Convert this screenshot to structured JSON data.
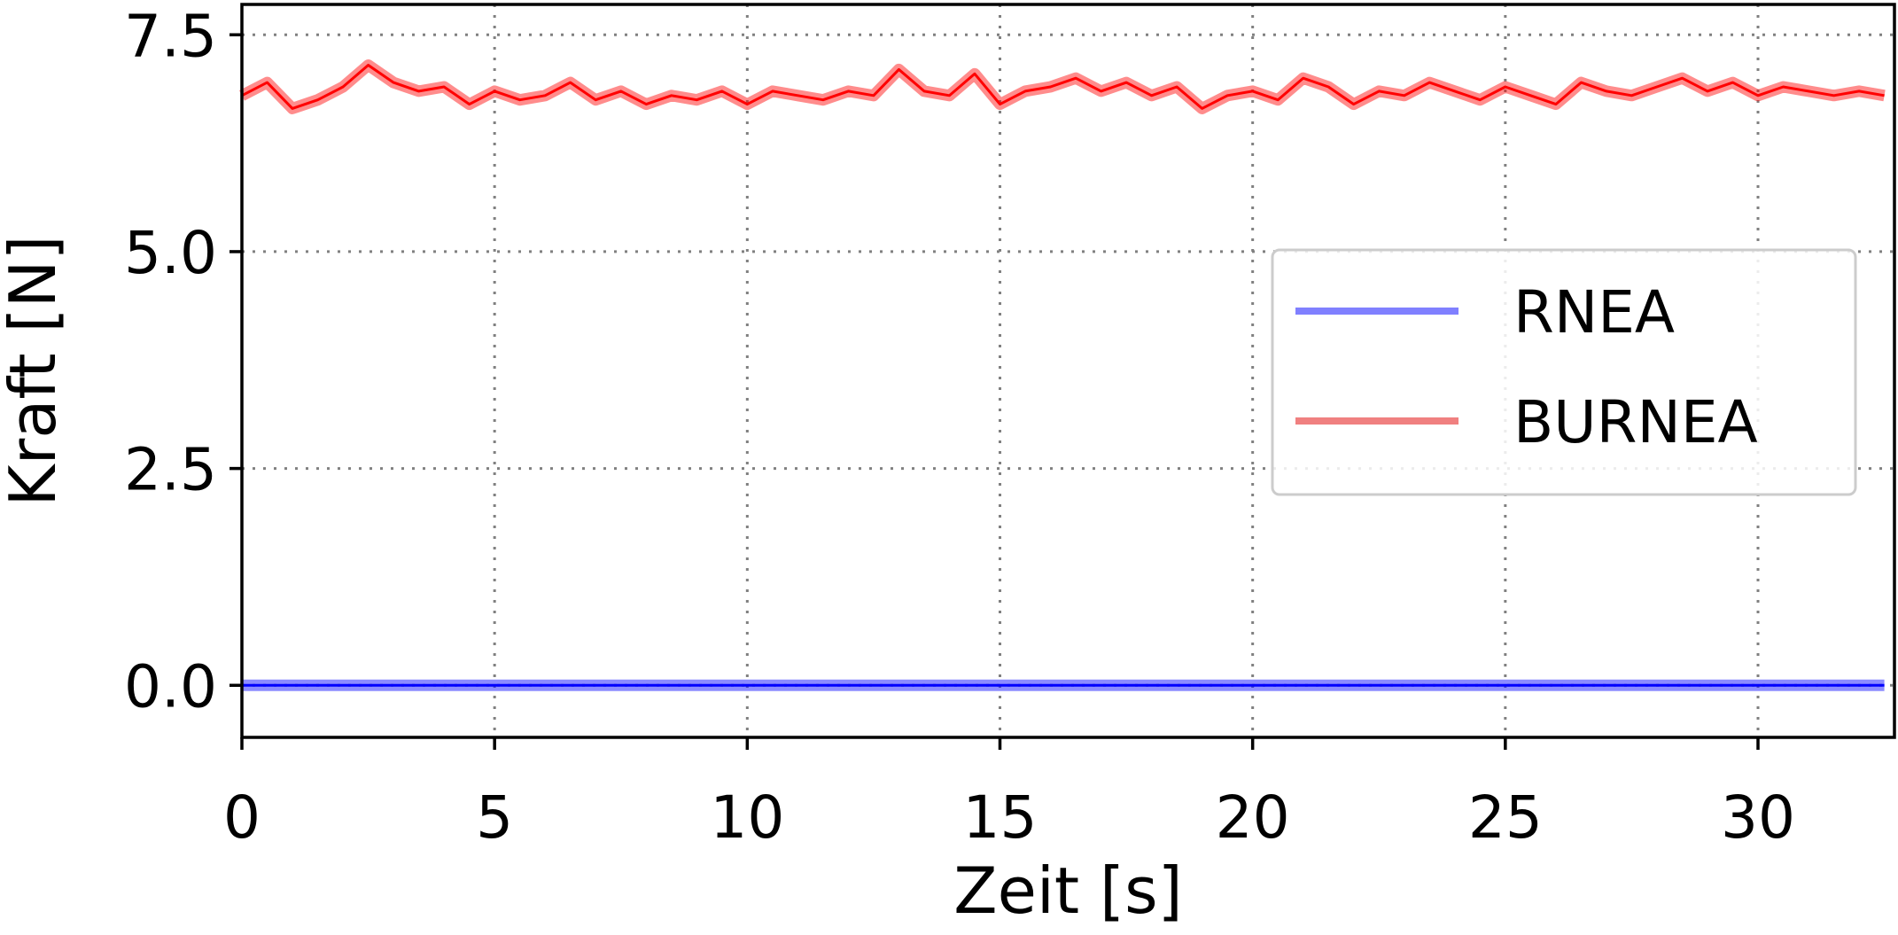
{
  "chart_data": {
    "type": "line",
    "title": "",
    "xlabel": "Zeit [s]",
    "ylabel": "Kraft [N]",
    "xlim": [
      0,
      32.7
    ],
    "ylim": [
      -0.6,
      7.85
    ],
    "xticks": [
      0,
      5,
      10,
      15,
      20,
      25,
      30
    ],
    "xtick_labels": [
      "0",
      "5",
      "10",
      "15",
      "20",
      "25",
      "30"
    ],
    "yticks": [
      0.0,
      2.5,
      5.0,
      7.5
    ],
    "ytick_labels": [
      "0.0",
      "2.5",
      "5.0",
      "7.5"
    ],
    "grid": true,
    "legend_position": "center-right",
    "x": [
      0,
      0.5,
      1,
      1.5,
      2,
      2.5,
      3,
      3.5,
      4,
      4.5,
      5,
      5.5,
      6,
      6.5,
      7,
      7.5,
      8,
      8.5,
      9,
      9.5,
      10,
      10.5,
      11,
      11.5,
      12,
      12.5,
      13,
      13.5,
      14,
      14.5,
      15,
      15.5,
      16,
      16.5,
      17,
      17.5,
      18,
      18.5,
      19,
      19.5,
      20,
      20.5,
      21,
      21.5,
      22,
      22.5,
      23,
      23.5,
      24,
      24.5,
      25,
      25.5,
      26,
      26.5,
      27,
      27.5,
      28,
      28.5,
      29,
      29.5,
      30,
      30.5,
      31,
      31.5,
      32,
      32.5
    ],
    "series": [
      {
        "name": "RNEA",
        "color": "#0000ff",
        "legend_color": "#8080ff",
        "values": [
          0,
          0,
          0,
          0,
          0,
          0,
          0,
          0,
          0,
          0,
          0,
          0,
          0,
          0,
          0,
          0,
          0,
          0,
          0,
          0,
          0,
          0,
          0,
          0,
          0,
          0,
          0,
          0,
          0,
          0,
          0,
          0,
          0,
          0,
          0,
          0,
          0,
          0,
          0,
          0,
          0,
          0,
          0,
          0,
          0,
          0,
          0,
          0,
          0,
          0,
          0,
          0,
          0,
          0,
          0,
          0,
          0,
          0,
          0,
          0,
          0,
          0,
          0,
          0,
          0,
          0
        ]
      },
      {
        "name": "BURNEA",
        "color": "#ff0000",
        "legend_color": "#f08080",
        "values": [
          6.8,
          6.95,
          6.65,
          6.75,
          6.9,
          7.15,
          6.95,
          6.85,
          6.9,
          6.7,
          6.85,
          6.75,
          6.8,
          6.95,
          6.75,
          6.85,
          6.7,
          6.8,
          6.75,
          6.85,
          6.7,
          6.85,
          6.8,
          6.75,
          6.85,
          6.8,
          7.1,
          6.85,
          6.8,
          7.05,
          6.7,
          6.85,
          6.9,
          7.0,
          6.85,
          6.95,
          6.8,
          6.9,
          6.65,
          6.8,
          6.85,
          6.75,
          7.0,
          6.9,
          6.7,
          6.85,
          6.8,
          6.95,
          6.85,
          6.75,
          6.9,
          6.8,
          6.7,
          6.95,
          6.85,
          6.8,
          6.9,
          7.0,
          6.85,
          6.95,
          6.8,
          6.9,
          6.85,
          6.8,
          6.85,
          6.8
        ]
      }
    ]
  }
}
